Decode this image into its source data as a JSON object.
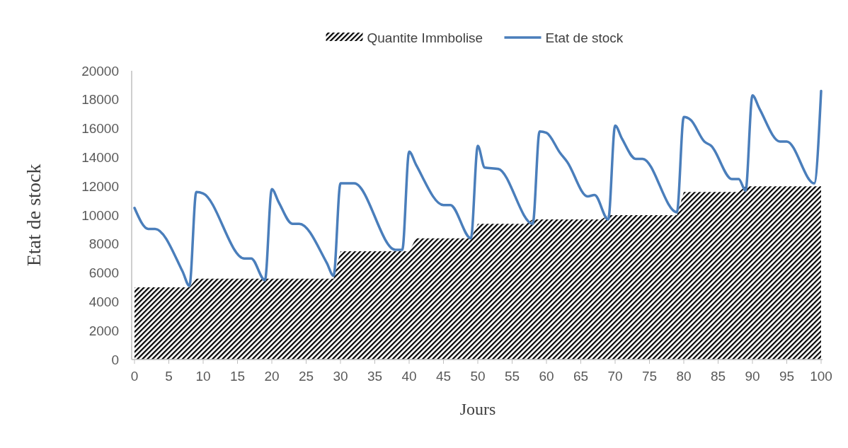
{
  "chart_data": {
    "type": "line",
    "xlabel": "Jours",
    "ylabel": "Etat de stock",
    "legend": "top",
    "xlim": [
      0,
      100
    ],
    "xticks": [
      0,
      5,
      10,
      15,
      20,
      25,
      30,
      35,
      40,
      45,
      50,
      55,
      60,
      65,
      70,
      75,
      80,
      85,
      90,
      95,
      100
    ],
    "ylim": [
      0,
      20000
    ],
    "yticks": [
      0,
      2000,
      4000,
      6000,
      8000,
      10000,
      12000,
      14000,
      16000,
      18000,
      20000
    ],
    "grid": false,
    "series": [
      {
        "name": "Quantite Immbolise",
        "type": "area",
        "color": "#000000",
        "x": [
          0,
          8,
          9,
          29,
          30,
          40,
          41,
          49,
          50,
          57,
          58,
          68,
          69,
          79,
          80,
          88,
          89,
          100
        ],
        "values": [
          5000,
          5000,
          5600,
          5600,
          7500,
          7500,
          8400,
          8400,
          9400,
          9400,
          9700,
          9700,
          10000,
          10000,
          11600,
          11600,
          12000,
          12000
        ]
      },
      {
        "name": "Etat de stock",
        "color": "#4a7ebb",
        "x": [
          0,
          2,
          3,
          7,
          8,
          9,
          10,
          16,
          17,
          19,
          20,
          21,
          23,
          24,
          28,
          29,
          30,
          32,
          38,
          39,
          40,
          41,
          45,
          46,
          49,
          50,
          51,
          53,
          58,
          59,
          60,
          62,
          63,
          66,
          67,
          69,
          70,
          71,
          73,
          74,
          79,
          80,
          81,
          83,
          84,
          87,
          88,
          89,
          90,
          91,
          94,
          95,
          99,
          100
        ],
        "values": [
          10500,
          9050,
          9050,
          6100,
          5100,
          11600,
          11500,
          7000,
          7000,
          5500,
          11800,
          10900,
          9400,
          9400,
          6700,
          5800,
          12200,
          12200,
          7600,
          7600,
          14400,
          13500,
          10700,
          10700,
          8400,
          14800,
          13300,
          13200,
          9400,
          15800,
          15700,
          14300,
          13700,
          11300,
          11400,
          9700,
          16200,
          15300,
          13900,
          13900,
          10200,
          16800,
          16600,
          15100,
          14800,
          12500,
          12500,
          11700,
          18300,
          17400,
          15100,
          15100,
          12200,
          18600
        ]
      }
    ]
  }
}
